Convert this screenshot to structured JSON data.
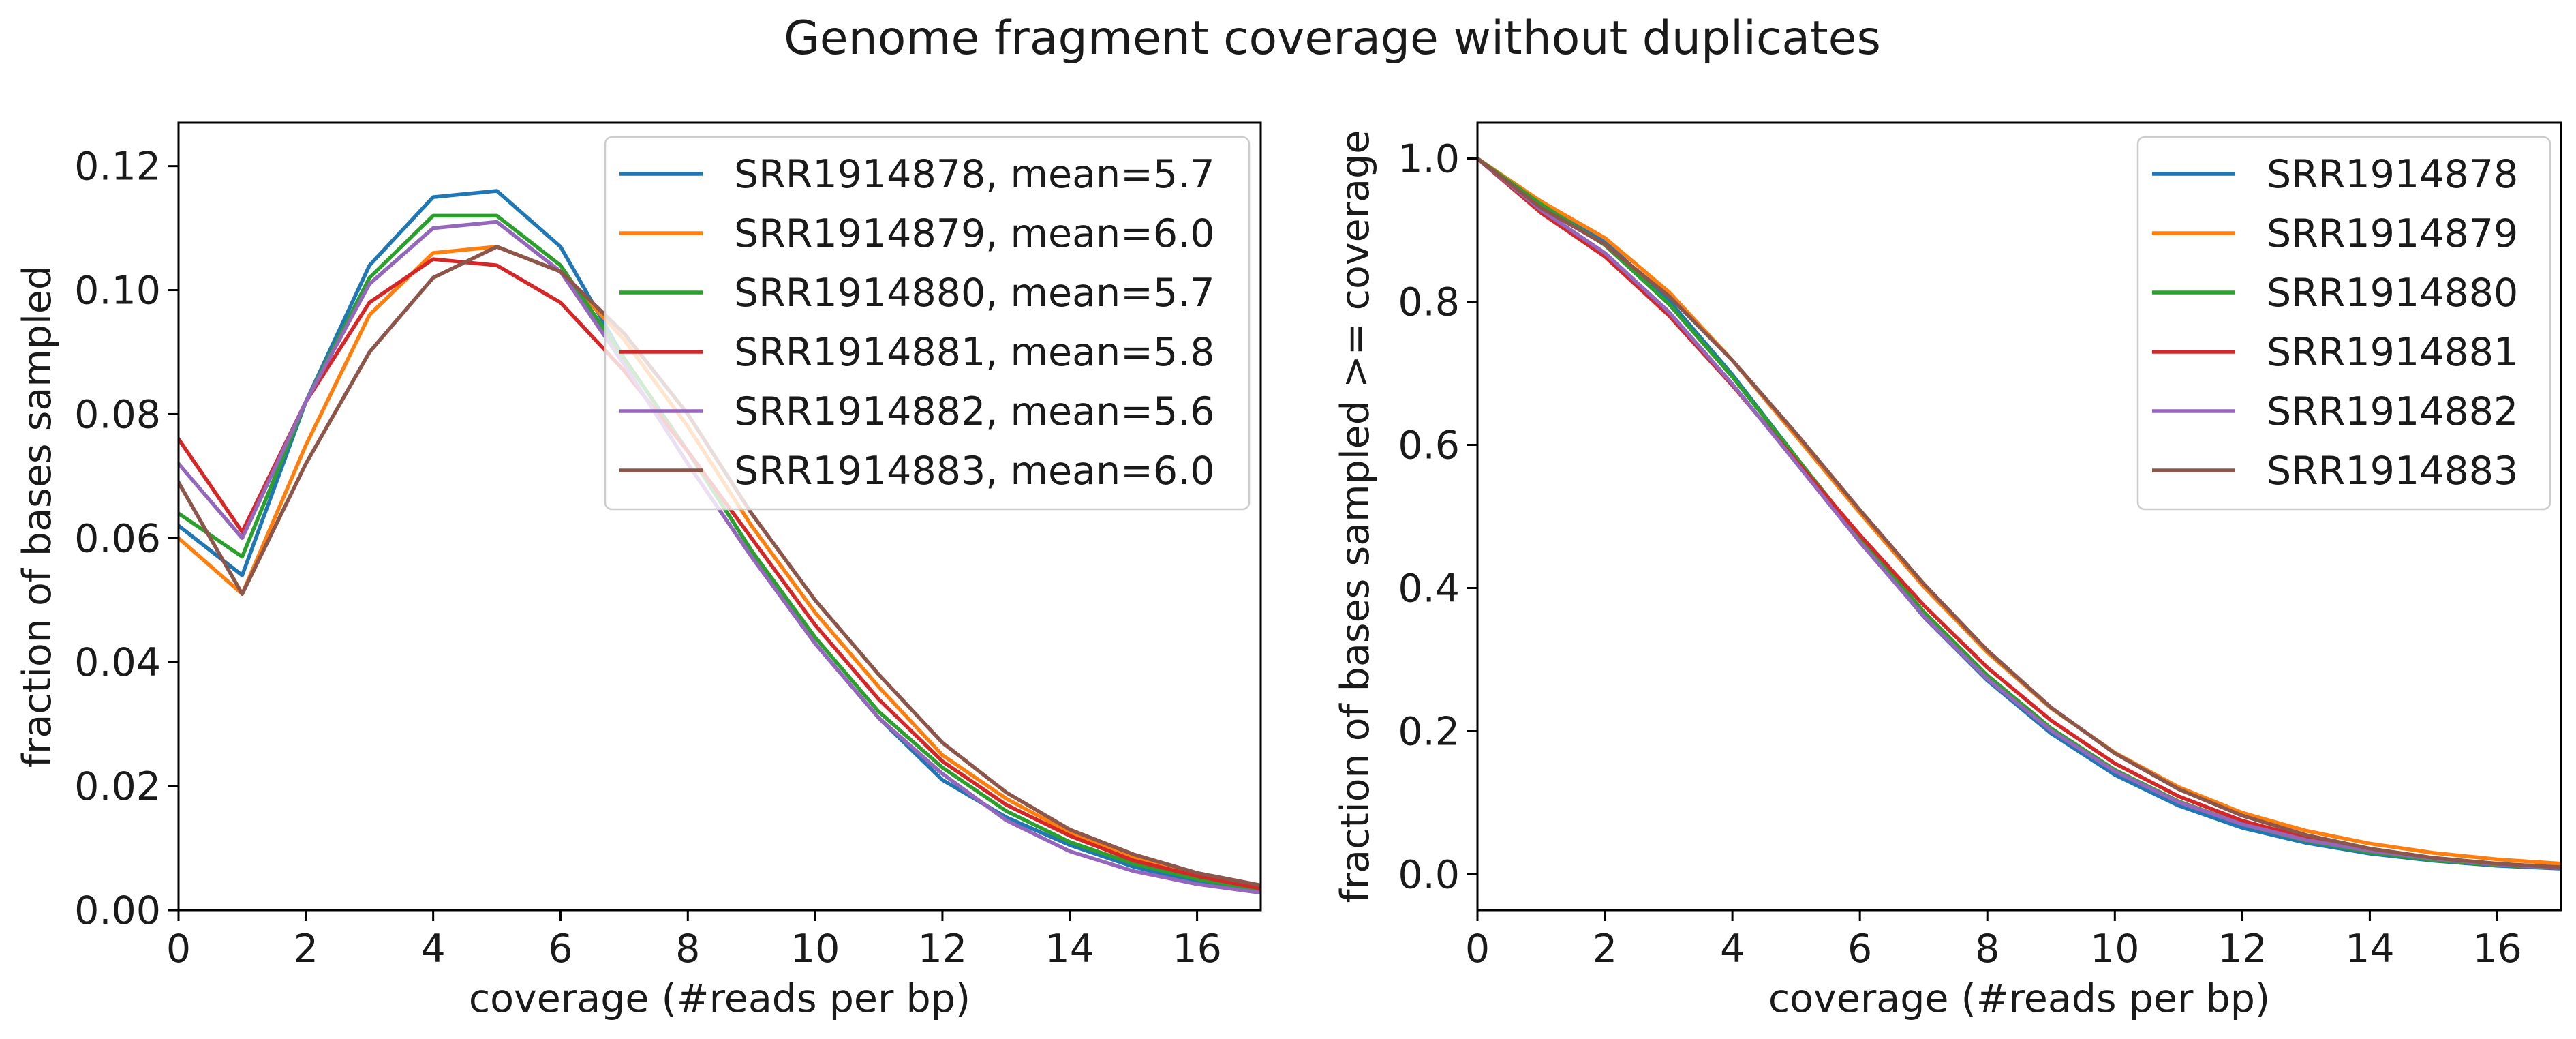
{
  "title": "Genome fragment coverage without duplicates",
  "colors": {
    "SRR1914878": "#1f77b4",
    "SRR1914879": "#ff7f0e",
    "SRR1914880": "#2ca02c",
    "SRR1914881": "#d62728",
    "SRR1914882": "#9467bd",
    "SRR1914883": "#8c564b"
  },
  "chart_data": [
    {
      "type": "line",
      "xlabel": "coverage (#reads per bp)",
      "ylabel": "fraction of bases sampled",
      "xlim": [
        0,
        17
      ],
      "ylim": [
        0,
        0.127
      ],
      "xticks": [
        0,
        2,
        4,
        6,
        8,
        10,
        12,
        14,
        16
      ],
      "yticks": [
        0,
        0.02,
        0.04,
        0.06,
        0.08,
        0.1,
        0.12
      ],
      "ytick_labels": [
        "0.00",
        "0.02",
        "0.04",
        "0.06",
        "0.08",
        "0.10",
        "0.12"
      ],
      "legend_position": "top-right",
      "x": [
        0,
        1,
        2,
        3,
        4,
        5,
        6,
        7,
        8,
        9,
        10,
        11,
        12,
        13,
        14,
        15,
        16,
        17
      ],
      "series": [
        {
          "name": "SRR1914878",
          "label": "SRR1914878, mean=5.7",
          "values": [
            0.062,
            0.054,
            0.082,
            0.104,
            0.115,
            0.116,
            0.107,
            0.089,
            0.074,
            0.058,
            0.043,
            0.031,
            0.021,
            0.015,
            0.0105,
            0.007,
            0.0045,
            0.003
          ]
        },
        {
          "name": "SRR1914879",
          "label": "SRR1914879, mean=6.0",
          "values": [
            0.06,
            0.051,
            0.075,
            0.096,
            0.106,
            0.107,
            0.103,
            0.092,
            0.078,
            0.062,
            0.048,
            0.036,
            0.025,
            0.018,
            0.0125,
            0.0085,
            0.0055,
            0.0035
          ]
        },
        {
          "name": "SRR1914880",
          "label": "SRR1914880, mean=5.7",
          "values": [
            0.064,
            0.057,
            0.082,
            0.102,
            0.112,
            0.112,
            0.104,
            0.089,
            0.074,
            0.058,
            0.044,
            0.032,
            0.023,
            0.016,
            0.011,
            0.0075,
            0.005,
            0.0033
          ]
        },
        {
          "name": "SRR1914881",
          "label": "SRR1914881, mean=5.8",
          "values": [
            0.076,
            0.061,
            0.082,
            0.098,
            0.105,
            0.104,
            0.098,
            0.087,
            0.074,
            0.06,
            0.046,
            0.034,
            0.024,
            0.017,
            0.012,
            0.008,
            0.0055,
            0.0035
          ]
        },
        {
          "name": "SRR1914882",
          "label": "SRR1914882, mean=5.6",
          "values": [
            0.072,
            0.06,
            0.082,
            0.101,
            0.11,
            0.111,
            0.103,
            0.088,
            0.072,
            0.057,
            0.043,
            0.031,
            0.022,
            0.0145,
            0.0095,
            0.0063,
            0.0042,
            0.0028
          ]
        },
        {
          "name": "SRR1914883",
          "label": "SRR1914883, mean=6.0",
          "values": [
            0.069,
            0.051,
            0.072,
            0.09,
            0.102,
            0.107,
            0.103,
            0.093,
            0.08,
            0.064,
            0.05,
            0.038,
            0.027,
            0.019,
            0.013,
            0.009,
            0.006,
            0.004
          ]
        }
      ]
    },
    {
      "type": "line",
      "xlabel": "coverage (#reads per bp)",
      "ylabel": "fraction of bases sampled >= coverage",
      "xlim": [
        0,
        17
      ],
      "ylim": [
        -0.05,
        1.05
      ],
      "xticks": [
        0,
        2,
        4,
        6,
        8,
        10,
        12,
        14,
        16
      ],
      "yticks": [
        0,
        0.2,
        0.4,
        0.6,
        0.8,
        1.0
      ],
      "ytick_labels": [
        "0.0",
        "0.2",
        "0.4",
        "0.6",
        "0.8",
        "1.0"
      ],
      "legend_position": "top-right",
      "x": [
        0,
        1,
        2,
        3,
        4,
        5,
        6,
        7,
        8,
        9,
        10,
        11,
        12,
        13,
        14,
        15,
        16,
        17
      ],
      "series": [
        {
          "name": "SRR1914878",
          "label": "SRR1914878",
          "values": [
            1.0,
            0.938,
            0.884,
            0.802,
            0.698,
            0.583,
            0.467,
            0.36,
            0.271,
            0.197,
            0.139,
            0.096,
            0.065,
            0.044,
            0.029,
            0.019,
            0.012,
            0.008
          ]
        },
        {
          "name": "SRR1914879",
          "label": "SRR1914879",
          "values": [
            1.0,
            0.94,
            0.889,
            0.814,
            0.718,
            0.612,
            0.505,
            0.402,
            0.31,
            0.232,
            0.17,
            0.122,
            0.086,
            0.061,
            0.043,
            0.03,
            0.021,
            0.015
          ]
        },
        {
          "name": "SRR1914880",
          "label": "SRR1914880",
          "values": [
            1.0,
            0.936,
            0.879,
            0.797,
            0.695,
            0.583,
            0.471,
            0.367,
            0.278,
            0.204,
            0.146,
            0.102,
            0.07,
            0.047,
            0.031,
            0.02,
            0.013,
            0.009
          ]
        },
        {
          "name": "SRR1914881",
          "label": "SRR1914881",
          "values": [
            1.0,
            0.924,
            0.863,
            0.781,
            0.683,
            0.578,
            0.474,
            0.376,
            0.289,
            0.215,
            0.155,
            0.109,
            0.075,
            0.051,
            0.034,
            0.022,
            0.014,
            0.009
          ]
        },
        {
          "name": "SRR1914882",
          "label": "SRR1914882",
          "values": [
            1.0,
            0.928,
            0.868,
            0.786,
            0.685,
            0.575,
            0.464,
            0.361,
            0.273,
            0.201,
            0.144,
            0.101,
            0.07,
            0.048,
            0.033,
            0.022,
            0.014,
            0.009
          ]
        },
        {
          "name": "SRR1914883",
          "label": "SRR1914883",
          "values": [
            1.0,
            0.931,
            0.88,
            0.808,
            0.718,
            0.616,
            0.509,
            0.406,
            0.313,
            0.233,
            0.169,
            0.119,
            0.082,
            0.055,
            0.036,
            0.023,
            0.015,
            0.01
          ]
        }
      ]
    }
  ]
}
